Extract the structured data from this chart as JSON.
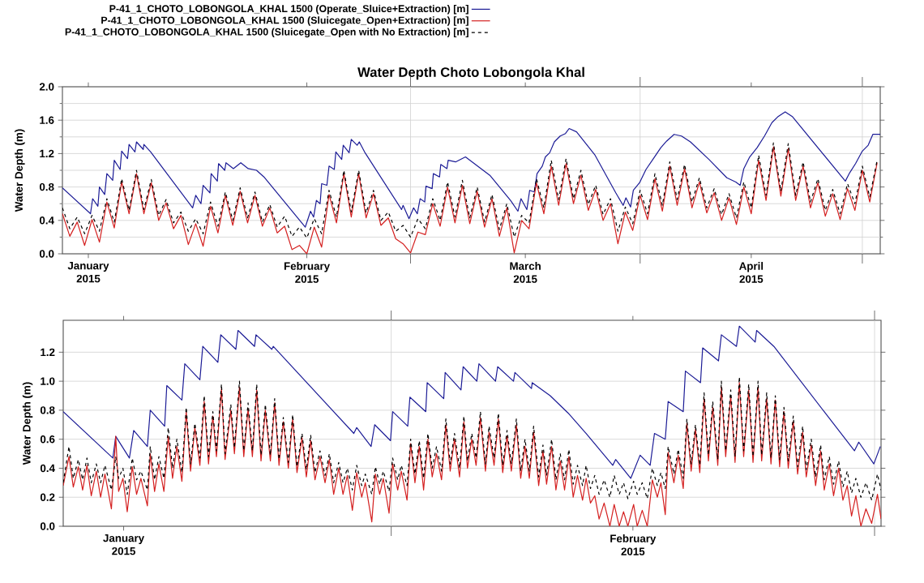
{
  "chart_data": [
    {
      "type": "line",
      "title": "Water Depth Choto Lobongola Khal",
      "ylabel": "Water Depth (m)",
      "legend": "top left",
      "grid": true,
      "xlim": [
        "2015-01-13",
        "2015-05-03T10:00"
      ],
      "ylim": [
        0,
        2
      ],
      "xticks": [
        {
          "value": "2015-01-16T12:00",
          "label": "January 2015"
        },
        {
          "value": "2015-02-15",
          "label": "February 2015"
        },
        {
          "value": "2015-03-01",
          "label": null
        },
        {
          "value": "2015-03-16T12:00",
          "label": "March 2015"
        },
        {
          "value": "2015-04-01",
          "label": null
        },
        {
          "value": "2015-04-16",
          "label": "April 2015"
        },
        {
          "value": "2015-05-01",
          "label": null
        }
      ],
      "yticks": [
        {
          "value": 0,
          "label": "0.0"
        },
        {
          "value": 0.2,
          "label": null
        },
        {
          "value": 0.4,
          "label": "0.4"
        },
        {
          "value": 0.6,
          "label": null
        },
        {
          "value": 0.8,
          "label": "0.8"
        },
        {
          "value": 1.0,
          "label": null
        },
        {
          "value": 1.2,
          "label": "1.2"
        },
        {
          "value": 1.4,
          "label": null
        },
        {
          "value": 1.6,
          "label": "1.6"
        },
        {
          "value": 1.8,
          "label": null
        },
        {
          "value": 2.0,
          "label": "2.0"
        }
      ],
      "x": [
        "2015-01-13",
        "2015-01-14",
        "2015-01-15",
        "2015-01-16",
        "2015-01-17",
        "2015-01-18",
        "2015-01-19",
        "2015-01-20",
        "2015-01-21",
        "2015-01-22",
        "2015-01-23",
        "2015-01-24",
        "2015-01-25",
        "2015-01-26",
        "2015-01-27",
        "2015-01-28",
        "2015-01-29",
        "2015-01-30",
        "2015-01-31",
        "2015-02-01",
        "2015-02-02",
        "2015-02-03",
        "2015-02-04",
        "2015-02-05",
        "2015-02-06",
        "2015-02-07",
        "2015-02-08",
        "2015-02-09",
        "2015-02-10",
        "2015-02-11",
        "2015-02-12",
        "2015-02-13",
        "2015-02-14",
        "2015-02-15",
        "2015-02-16",
        "2015-02-17",
        "2015-02-18",
        "2015-02-19",
        "2015-02-20",
        "2015-02-21",
        "2015-02-22",
        "2015-02-23",
        "2015-02-24",
        "2015-02-25",
        "2015-02-26",
        "2015-02-27",
        "2015-02-28",
        "2015-03-01",
        "2015-03-02",
        "2015-03-03",
        "2015-03-04",
        "2015-03-05",
        "2015-03-06",
        "2015-03-07",
        "2015-03-08",
        "2015-03-09",
        "2015-03-10",
        "2015-03-11",
        "2015-03-12",
        "2015-03-13",
        "2015-03-14",
        "2015-03-15",
        "2015-03-16",
        "2015-03-17",
        "2015-03-18",
        "2015-03-19",
        "2015-03-20",
        "2015-03-21",
        "2015-03-22",
        "2015-03-23",
        "2015-03-24",
        "2015-03-25",
        "2015-03-26",
        "2015-03-27",
        "2015-03-28",
        "2015-03-29",
        "2015-03-30",
        "2015-03-31",
        "2015-04-01",
        "2015-04-02",
        "2015-04-03",
        "2015-04-04",
        "2015-04-05",
        "2015-04-06",
        "2015-04-07",
        "2015-04-08",
        "2015-04-09",
        "2015-04-10",
        "2015-04-11",
        "2015-04-12",
        "2015-04-13",
        "2015-04-14",
        "2015-04-15",
        "2015-04-16",
        "2015-04-17",
        "2015-04-18",
        "2015-04-19",
        "2015-04-20",
        "2015-04-21",
        "2015-04-22",
        "2015-04-23",
        "2015-04-24",
        "2015-04-25",
        "2015-04-26",
        "2015-04-27",
        "2015-04-28",
        "2015-04-29",
        "2015-04-30",
        "2015-05-01",
        "2015-05-02",
        "2015-05-03"
      ],
      "series": [
        {
          "name": "P-41_1_CHOTO_LOBONGOLA_KHAL 1500 (Operate_Sluice+Extraction) [m]",
          "color": "#1c1c96",
          "x": [
            "2015-01-13T00:00",
            "2015-01-16T19:00",
            "2015-01-17T02:00",
            "2015-01-17T19:00",
            "2015-01-18T00:00",
            "2015-01-18T17:00",
            "2015-01-19T00:00",
            "2015-01-19T19:00",
            "2015-01-20T00:00",
            "2015-01-20T19:00",
            "2015-01-21T00:00",
            "2015-01-21T19:00",
            "2015-01-22T00:00",
            "2015-01-22T19:00",
            "2015-01-23T00:00",
            "2015-01-23T22:00",
            "2015-01-24T00:00",
            "2015-01-24T22:00",
            "2015-01-30T14:00",
            "2015-01-31T00:00",
            "2015-01-31T17:00",
            "2015-02-01T00:00",
            "2015-02-01T22:00",
            "2015-02-02T02:00",
            "2015-02-02T22:00",
            "2015-02-03T02:00",
            "2015-02-03T22:00",
            "2015-02-04T02:00",
            "2015-02-05T02:00",
            "2015-02-06T02:00",
            "2015-02-07T02:00",
            "2015-02-08T05:00",
            "2015-02-09T05:00",
            "2015-02-14T19:00",
            "2015-02-15T12:00",
            "2015-02-15T22:00",
            "2015-02-16T07:00",
            "2015-02-16T19:00",
            "2015-02-17T00:00",
            "2015-02-17T17:00",
            "2015-02-18T00:00",
            "2015-02-18T17:00",
            "2015-02-18T22:00",
            "2015-02-19T17:00",
            "2015-02-19T22:00",
            "2015-02-20T17:00",
            "2015-02-21T00:00",
            "2015-02-21T19:00",
            "2015-02-22T02:00",
            "2015-02-22T19:00",
            "2015-02-27T19:00",
            "2015-02-28T00:00",
            "2015-02-28T19:00",
            "2015-03-01T10:00",
            "2015-03-01T22:00",
            "2015-03-02T07:00",
            "2015-03-02T22:00",
            "2015-03-03T02:00",
            "2015-03-03T22:00",
            "2015-03-04T02:00",
            "2015-03-04T22:00",
            "2015-03-05T02:00",
            "2015-03-05T22:00",
            "2015-03-06T02:00",
            "2015-03-07T02:00",
            "2015-03-08T10:00",
            "2015-03-11T17:00",
            "2015-03-14T12:00",
            "2015-03-15T12:00",
            "2015-03-15T22:00",
            "2015-03-16T17:00",
            "2015-03-17T02:00",
            "2015-03-17T17:00",
            "2015-03-18T02:00",
            "2015-03-18T19:00",
            "2015-03-19T05:00",
            "2015-03-19T19:00",
            "2015-03-20T10:00",
            "2015-03-21T05:00",
            "2015-03-21T22:00",
            "2015-03-22T10:00",
            "2015-03-23T10:00",
            "2015-03-25T22:00",
            "2015-03-28T17:00",
            "2015-03-29T17:00",
            "2015-03-30T02:00",
            "2015-03-30T17:00",
            "2015-03-31T02:00",
            "2015-03-31T22:00",
            "2015-04-01T19:00",
            "2015-04-02T19:00",
            "2015-04-03T19:00",
            "2015-04-04T14:00",
            "2015-04-05T14:00",
            "2015-04-06T14:00",
            "2015-04-07T19:00",
            "2015-04-10T07:00",
            "2015-04-12T17:00",
            "2015-04-13T22:00",
            "2015-04-14T12:00",
            "2015-04-15T00:00",
            "2015-04-15T19:00",
            "2015-04-16T19:00",
            "2015-04-17T19:00",
            "2015-04-18T19:00",
            "2015-04-19T14:00",
            "2015-04-20T14:00",
            "2015-04-21T14:00",
            "2015-04-28T17:00",
            "2015-04-29T07:00",
            "2015-04-30T02:00",
            "2015-05-01T00:00",
            "2015-05-01T19:00",
            "2015-05-02T10:00",
            "2015-05-03T10:00"
          ],
          "values": [
            0.79,
            0.48,
            0.66,
            0.57,
            0.8,
            0.71,
            0.96,
            0.88,
            1.12,
            1.01,
            1.23,
            1.14,
            1.31,
            1.22,
            1.34,
            1.25,
            1.31,
            1.22,
            0.55,
            0.7,
            0.6,
            0.82,
            0.73,
            0.96,
            0.87,
            1.08,
            1.0,
            1.09,
            1.02,
            1.09,
            1.02,
            1.0,
            0.92,
            0.32,
            0.51,
            0.44,
            0.64,
            0.6,
            0.84,
            0.82,
            1.05,
            1.01,
            1.22,
            1.13,
            1.3,
            1.21,
            1.37,
            1.3,
            1.34,
            1.22,
            0.53,
            0.58,
            0.42,
            0.55,
            0.48,
            0.66,
            0.62,
            0.81,
            0.78,
            0.96,
            0.92,
            1.07,
            1.02,
            1.12,
            1.1,
            1.16,
            0.94,
            0.64,
            0.51,
            0.66,
            0.53,
            0.76,
            0.74,
            0.96,
            1.05,
            1.16,
            1.21,
            1.34,
            1.41,
            1.44,
            1.5,
            1.46,
            1.18,
            0.73,
            0.58,
            0.67,
            0.56,
            0.76,
            0.85,
            1.01,
            1.14,
            1.27,
            1.35,
            1.43,
            1.41,
            1.34,
            1.13,
            0.91,
            0.86,
            0.82,
            1.02,
            1.16,
            1.27,
            1.41,
            1.57,
            1.64,
            1.7,
            1.64,
            0.87,
            0.97,
            1.08,
            1.23,
            1.3,
            1.43,
            1.43
          ]
        },
        {
          "name": "P-41_1_CHOTO_LOBONGOLA_KHAL 1500 (Sluicegate_Open+Extraction) [m]",
          "color": "#d42020",
          "values": [
            0.48,
            0.21,
            0.38,
            0.1,
            0.41,
            0.14,
            0.62,
            0.31,
            0.86,
            0.48,
            0.96,
            0.48,
            0.85,
            0.4,
            0.61,
            0.3,
            0.46,
            0.11,
            0.36,
            0.09,
            0.57,
            0.25,
            0.7,
            0.34,
            0.75,
            0.37,
            0.7,
            0.33,
            0.55,
            0.25,
            0.33,
            0.05,
            0.1,
            0.0,
            0.32,
            0.08,
            0.71,
            0.37,
            0.96,
            0.44,
            0.96,
            0.43,
            0.72,
            0.34,
            0.43,
            0.18,
            0.12,
            0.01,
            0.26,
            0.23,
            0.6,
            0.33,
            0.8,
            0.37,
            0.82,
            0.36,
            0.75,
            0.32,
            0.66,
            0.21,
            0.55,
            0.01,
            0.4,
            0.3,
            0.85,
            0.48,
            1.05,
            0.58,
            1.08,
            0.6,
            0.94,
            0.52,
            0.77,
            0.4,
            0.6,
            0.12,
            0.5,
            0.28,
            0.7,
            0.41,
            0.9,
            0.51,
            1.05,
            0.58,
            1.02,
            0.55,
            0.86,
            0.49,
            0.73,
            0.4,
            0.67,
            0.35,
            0.8,
            0.48,
            1.12,
            0.64,
            1.28,
            0.69,
            1.26,
            0.64,
            1.05,
            0.55,
            0.85,
            0.45,
            0.72,
            0.41,
            0.78,
            0.52,
            1.0,
            0.62,
            1.09
          ]
        },
        {
          "name": "P-41_1_CHOTO_LOBONGOLA_KHAL 1500 (Sluicegate_Open with No Extraction) [m]",
          "color": "#000000",
          "line_style": "dashed",
          "values": [
            0.55,
            0.3,
            0.44,
            0.24,
            0.46,
            0.27,
            0.66,
            0.38,
            0.9,
            0.52,
            1.0,
            0.53,
            0.89,
            0.46,
            0.65,
            0.37,
            0.5,
            0.27,
            0.42,
            0.24,
            0.62,
            0.33,
            0.74,
            0.4,
            0.79,
            0.43,
            0.74,
            0.38,
            0.59,
            0.32,
            0.45,
            0.21,
            0.32,
            0.19,
            0.42,
            0.24,
            0.76,
            0.44,
            1.0,
            0.5,
            1.0,
            0.49,
            0.76,
            0.4,
            0.5,
            0.27,
            0.34,
            0.2,
            0.42,
            0.3,
            0.66,
            0.4,
            0.86,
            0.44,
            0.88,
            0.43,
            0.8,
            0.38,
            0.71,
            0.29,
            0.6,
            0.2,
            0.46,
            0.37,
            0.9,
            0.55,
            1.12,
            0.65,
            1.14,
            0.66,
            1.0,
            0.59,
            0.82,
            0.47,
            0.66,
            0.27,
            0.56,
            0.36,
            0.76,
            0.48,
            0.96,
            0.58,
            1.1,
            0.65,
            1.07,
            0.62,
            0.91,
            0.55,
            0.78,
            0.47,
            0.72,
            0.43,
            0.86,
            0.55,
            1.18,
            0.7,
            1.33,
            0.75,
            1.32,
            0.7,
            1.1,
            0.62,
            0.9,
            0.52,
            0.77,
            0.48,
            0.84,
            0.6,
            1.05,
            0.68,
            1.12
          ]
        }
      ]
    },
    {
      "type": "line",
      "ylabel": "Water Depth (m)",
      "grid": true,
      "xlim": [
        "2015-01-13",
        "2015-03-01T09:00"
      ],
      "ylim": [
        0,
        1.42
      ],
      "xticks": [
        {
          "value": "2015-01-16T12:00",
          "label": "January 2015"
        },
        {
          "value": "2015-02-01",
          "label": null
        },
        {
          "value": "2015-02-15",
          "label": "February 2015"
        },
        {
          "value": "2015-03-01",
          "label": null
        }
      ],
      "yticks": [
        {
          "value": 0,
          "label": "0.0"
        },
        {
          "value": 0.2,
          "label": "0.2"
        },
        {
          "value": 0.4,
          "label": "0.4"
        },
        {
          "value": 0.6,
          "label": "0.6"
        },
        {
          "value": 0.8,
          "label": "0.8"
        },
        {
          "value": 1.0,
          "label": "1.0"
        },
        {
          "value": 1.2,
          "label": "1.2"
        }
      ],
      "x": [
        "2015-01-13T00:00",
        "2015-01-13T08:00",
        "2015-01-13T14:00",
        "2015-01-13T21:00",
        "2015-01-14T03:00",
        "2015-01-14T09:00",
        "2015-01-14T15:00",
        "2015-01-14T22:00",
        "2015-01-15T04:00",
        "2015-01-15T10:00",
        "2015-01-15T19:00",
        "2015-01-16T01:00",
        "2015-01-16T05:00",
        "2015-01-16T11:00",
        "2015-01-16T17:00",
        "2015-01-17T00:00",
        "2015-01-17T06:00",
        "2015-01-17T12:00",
        "2015-01-17T21:00",
        "2015-01-18T01:00",
        "2015-01-18T07:00",
        "2015-01-18T13:00",
        "2015-01-18T20:00",
        "2015-01-19T02:00",
        "2015-01-19T08:00",
        "2015-01-19T14:00",
        "2015-01-19T21:00",
        "2015-01-20T03:00",
        "2015-01-20T09:00",
        "2015-01-20T15:00",
        "2015-01-20T22:00",
        "2015-01-21T04:00",
        "2015-01-21T10:00",
        "2015-01-21T16:00",
        "2015-01-21T21:00",
        "2015-01-22T04:00",
        "2015-01-22T09:00",
        "2015-01-22T17:00",
        "2015-01-22T22:00",
        "2015-01-23T05:00",
        "2015-01-23T11:00",
        "2015-01-23T17:00",
        "2015-01-23T23:00",
        "2015-01-24T05:00",
        "2015-01-24T11:00",
        "2015-01-24T17:00",
        "2015-01-25T00:00",
        "2015-01-25T06:00",
        "2015-01-25T12:00",
        "2015-01-25T18:00",
        "2015-01-26T01:00",
        "2015-01-26T07:00",
        "2015-01-26T13:00",
        "2015-01-26T20:00",
        "2015-01-27T02:00",
        "2015-01-27T08:00",
        "2015-01-27T14:00",
        "2015-01-27T21:00",
        "2015-01-28T04:00",
        "2015-01-28T10:00",
        "2015-01-28T16:00",
        "2015-01-28T23:00",
        "2015-01-29T05:00",
        "2015-01-29T11:00",
        "2015-01-29T18:00",
        "2015-01-30T00:00",
        "2015-01-30T07:00",
        "2015-01-30T12:00",
        "2015-01-30T21:00",
        "2015-01-31T02:00",
        "2015-01-31T08:00",
        "2015-01-31T13:00",
        "2015-01-31T21:00",
        "2015-02-01T02:00",
        "2015-02-01T09:00",
        "2015-02-01T14:00",
        "2015-02-01T22:00",
        "2015-02-02T03:00",
        "2015-02-02T09:00",
        "2015-02-02T15:00",
        "2015-02-02T21:00",
        "2015-02-03T03:00",
        "2015-02-03T09:00",
        "2015-02-03T15:00",
        "2015-02-03T22:00",
        "2015-02-04T04:00",
        "2015-02-04T10:00",
        "2015-02-04T16:00",
        "2015-02-04T23:00",
        "2015-02-05T05:00",
        "2015-02-05T10:00",
        "2015-02-05T16:00",
        "2015-02-05T22:00",
        "2015-02-06T04:00",
        "2015-02-06T11:00",
        "2015-02-06T16:00",
        "2015-02-06T23:00",
        "2015-02-07T05:00",
        "2015-02-07T11:00",
        "2015-02-07T17:00",
        "2015-02-07T23:00",
        "2015-02-08T06:00",
        "2015-02-08T12:00",
        "2015-02-08T18:00",
        "2015-02-09T00:00",
        "2015-02-09T06:00",
        "2015-02-09T13:00",
        "2015-02-09T19:00",
        "2015-02-10T00:00",
        "2015-02-10T07:00",
        "2015-02-10T13:00",
        "2015-02-10T19:00",
        "2015-02-11T01:00",
        "2015-02-11T07:00",
        "2015-02-11T13:00",
        "2015-02-11T19:00",
        "2015-02-12T02:00",
        "2015-02-12T07:00",
        "2015-02-12T13:00",
        "2015-02-12T19:00",
        "2015-02-13T01:00",
        "2015-02-13T08:00",
        "2015-02-13T16:00",
        "2015-02-13T22:00",
        "2015-02-14T05:00",
        "2015-02-14T11:00",
        "2015-02-14T17:00",
        "2015-02-15T01:00",
        "2015-02-15T06:00",
        "2015-02-15T13:00",
        "2015-02-15T20:00",
        "2015-02-16T03:00",
        "2015-02-16T10:00",
        "2015-02-16T15:00",
        "2015-02-16T21:00",
        "2015-02-17T01:00",
        "2015-02-17T09:00",
        "2015-02-17T15:00",
        "2015-02-17T22:00",
        "2015-02-18T03:00",
        "2015-02-18T09:00",
        "2015-02-18T15:00",
        "2015-02-18T21:00",
        "2015-02-19T03:00",
        "2015-02-19T09:00",
        "2015-02-19T15:00",
        "2015-02-19T22:00",
        "2015-02-20T03:00",
        "2015-02-20T09:00",
        "2015-02-20T16:00",
        "2015-02-20T22:00",
        "2015-02-21T04:00",
        "2015-02-21T10:00",
        "2015-02-21T17:00",
        "2015-02-21T23:00",
        "2015-02-22T06:00",
        "2015-02-22T11:00",
        "2015-02-22T18:00",
        "2015-02-23T00:00",
        "2015-02-23T06:00",
        "2015-02-23T12:00",
        "2015-02-23T18:00",
        "2015-02-24T00:00",
        "2015-02-24T07:00",
        "2015-02-24T13:00",
        "2015-02-24T20:00",
        "2015-02-25T01:00",
        "2015-02-25T08:00",
        "2015-02-25T14:00",
        "2015-02-25T21:00",
        "2015-02-26T02:00",
        "2015-02-26T09:00",
        "2015-02-26T15:00",
        "2015-02-26T22:00",
        "2015-02-27T04:00",
        "2015-02-27T10:00",
        "2015-02-27T16:00",
        "2015-02-27T22:00",
        "2015-02-28T05:00",
        "2015-02-28T12:00",
        "2015-02-28T20:00",
        "2015-03-01T04:00",
        "2015-03-01T09:00"
      ],
      "series": [
        {
          "color": "#1c1c96",
          "x": [
            "2015-01-13T00:00",
            "2015-01-15T21:00",
            "2015-01-16T01:00",
            "2015-01-16T20:00",
            "2015-01-17T02:00",
            "2015-01-17T21:00",
            "2015-01-18T01:00",
            "2015-01-18T21:00",
            "2015-01-19T00:00",
            "2015-01-19T21:00",
            "2015-01-20T01:00",
            "2015-01-20T22:00",
            "2015-01-21T02:00",
            "2015-01-21T23:00",
            "2015-01-22T03:00",
            "2015-01-23T00:00",
            "2015-01-23T03:00",
            "2015-01-24T02:00",
            "2015-01-24T04:00",
            "2015-01-25T02:00",
            "2015-01-25T04:00",
            "2015-01-29T20:00",
            "2015-01-30T00:00",
            "2015-01-30T20:00",
            "2015-01-31T01:00",
            "2015-01-31T23:00",
            "2015-02-01T02:00",
            "2015-02-01T23:00",
            "2015-02-02T02:00",
            "2015-02-03T00:00",
            "2015-02-03T02:00",
            "2015-02-04T01:00",
            "2015-02-04T03:00",
            "2015-02-05T01:00",
            "2015-02-05T04:00",
            "2015-02-05T23:00",
            "2015-02-06T02:00",
            "2015-02-07T01:00",
            "2015-02-07T04:00",
            "2015-02-08T02:00",
            "2015-02-08T04:00",
            "2015-02-09T03:00",
            "2015-02-09T04:00",
            "2015-02-10T05:00",
            "2015-02-11T06:00",
            "2015-02-12T07:00",
            "2015-02-13T20:00",
            "2015-02-14T00:00",
            "2015-02-14T21:00",
            "2015-02-15T10:00",
            "2015-02-16T00:00",
            "2015-02-16T06:00",
            "2015-02-16T21:00",
            "2015-02-17T01:00",
            "2015-02-17T22:00",
            "2015-02-18T01:00",
            "2015-02-18T22:00",
            "2015-02-19T01:00",
            "2015-02-19T23:00",
            "2015-02-20T03:00",
            "2015-02-21T00:00",
            "2015-02-21T04:00",
            "2015-02-22T02:00",
            "2015-02-22T04:00",
            "2015-02-23T04:00",
            "2015-02-27T20:00",
            "2015-02-28T02:00",
            "2015-02-28T23:00",
            "2015-03-01T08:00"
          ],
          "values": [
            0.79,
            0.47,
            0.62,
            0.47,
            0.66,
            0.55,
            0.8,
            0.69,
            0.97,
            0.87,
            1.12,
            1.01,
            1.24,
            1.13,
            1.32,
            1.22,
            1.35,
            1.24,
            1.32,
            1.22,
            1.24,
            0.64,
            0.68,
            0.55,
            0.7,
            0.59,
            0.79,
            0.69,
            0.89,
            0.79,
            0.99,
            0.88,
            1.06,
            0.94,
            1.1,
            1.0,
            1.12,
            1.0,
            1.1,
            1.0,
            1.06,
            0.95,
            0.99,
            0.9,
            0.78,
            0.64,
            0.42,
            0.46,
            0.33,
            0.49,
            0.42,
            0.64,
            0.6,
            0.86,
            0.79,
            1.07,
            0.99,
            1.23,
            1.14,
            1.32,
            1.24,
            1.38,
            1.27,
            1.35,
            1.24,
            0.52,
            0.58,
            0.43,
            0.55
          ]
        },
        {
          "color": "#d42020",
          "values": [
            0.28,
            0.48,
            0.27,
            0.41,
            0.25,
            0.42,
            0.21,
            0.38,
            0.2,
            0.36,
            0.12,
            0.62,
            0.24,
            0.33,
            0.1,
            0.41,
            0.22,
            0.33,
            0.14,
            0.5,
            0.24,
            0.43,
            0.24,
            0.62,
            0.33,
            0.55,
            0.31,
            0.79,
            0.38,
            0.68,
            0.42,
            0.86,
            0.43,
            0.76,
            0.48,
            0.95,
            0.46,
            0.8,
            0.5,
            0.96,
            0.48,
            0.81,
            0.48,
            0.94,
            0.45,
            0.8,
            0.45,
            0.85,
            0.42,
            0.72,
            0.4,
            0.74,
            0.37,
            0.61,
            0.34,
            0.59,
            0.32,
            0.48,
            0.3,
            0.46,
            0.22,
            0.4,
            0.22,
            0.35,
            0.11,
            0.37,
            0.2,
            0.3,
            0.03,
            0.36,
            0.22,
            0.33,
            0.09,
            0.43,
            0.25,
            0.38,
            0.18,
            0.57,
            0.3,
            0.55,
            0.25,
            0.6,
            0.34,
            0.5,
            0.32,
            0.7,
            0.38,
            0.6,
            0.34,
            0.72,
            0.4,
            0.6,
            0.42,
            0.75,
            0.38,
            0.65,
            0.42,
            0.74,
            0.37,
            0.62,
            0.38,
            0.7,
            0.33,
            0.55,
            0.33,
            0.65,
            0.28,
            0.52,
            0.29,
            0.55,
            0.25,
            0.45,
            0.25,
            0.48,
            0.2,
            0.35,
            0.18,
            0.33,
            0.16,
            0.21,
            0.05,
            0.16,
            0.0,
            0.15,
            0.0,
            0.1,
            0.0,
            0.15,
            0.0,
            0.11,
            0.0,
            0.32,
            0.2,
            0.3,
            0.08,
            0.51,
            0.3,
            0.49,
            0.26,
            0.71,
            0.38,
            0.67,
            0.37,
            0.88,
            0.45,
            0.82,
            0.42,
            0.96,
            0.48,
            0.9,
            0.44,
            0.99,
            0.48,
            0.94,
            0.44,
            0.96,
            0.45,
            0.88,
            0.43,
            0.87,
            0.41,
            0.79,
            0.4,
            0.72,
            0.36,
            0.65,
            0.34,
            0.56,
            0.28,
            0.52,
            0.25,
            0.43,
            0.21,
            0.4,
            0.18,
            0.28,
            0.07,
            0.21,
            0.0,
            0.12,
            0.02,
            0.22,
            0.05
          ]
        },
        {
          "color": "#000000",
          "line_style": "dashed",
          "values": [
            0.3,
            0.55,
            0.33,
            0.46,
            0.32,
            0.47,
            0.3,
            0.43,
            0.3,
            0.42,
            0.25,
            0.48,
            0.33,
            0.4,
            0.22,
            0.47,
            0.32,
            0.38,
            0.25,
            0.55,
            0.32,
            0.48,
            0.33,
            0.68,
            0.4,
            0.6,
            0.37,
            0.82,
            0.43,
            0.71,
            0.47,
            0.9,
            0.48,
            0.79,
            0.52,
            0.98,
            0.5,
            0.84,
            0.54,
            1.0,
            0.52,
            0.85,
            0.52,
            0.98,
            0.49,
            0.84,
            0.49,
            0.88,
            0.46,
            0.75,
            0.44,
            0.77,
            0.41,
            0.64,
            0.39,
            0.63,
            0.37,
            0.52,
            0.35,
            0.5,
            0.3,
            0.44,
            0.3,
            0.4,
            0.25,
            0.42,
            0.28,
            0.36,
            0.22,
            0.41,
            0.29,
            0.38,
            0.24,
            0.47,
            0.32,
            0.42,
            0.28,
            0.6,
            0.36,
            0.59,
            0.33,
            0.64,
            0.4,
            0.55,
            0.38,
            0.74,
            0.43,
            0.64,
            0.4,
            0.76,
            0.45,
            0.64,
            0.47,
            0.79,
            0.43,
            0.69,
            0.47,
            0.78,
            0.42,
            0.66,
            0.43,
            0.74,
            0.38,
            0.6,
            0.38,
            0.69,
            0.34,
            0.56,
            0.35,
            0.6,
            0.32,
            0.5,
            0.32,
            0.53,
            0.29,
            0.42,
            0.28,
            0.42,
            0.26,
            0.35,
            0.22,
            0.32,
            0.2,
            0.35,
            0.22,
            0.3,
            0.19,
            0.31,
            0.22,
            0.3,
            0.19,
            0.4,
            0.28,
            0.37,
            0.26,
            0.55,
            0.36,
            0.53,
            0.33,
            0.74,
            0.43,
            0.7,
            0.42,
            0.92,
            0.49,
            0.86,
            0.46,
            1.0,
            0.52,
            0.94,
            0.48,
            1.03,
            0.52,
            0.98,
            0.48,
            1.0,
            0.49,
            0.92,
            0.47,
            0.9,
            0.46,
            0.82,
            0.45,
            0.76,
            0.41,
            0.69,
            0.39,
            0.6,
            0.34,
            0.56,
            0.32,
            0.48,
            0.29,
            0.45,
            0.27,
            0.38,
            0.23,
            0.33,
            0.2,
            0.3,
            0.18,
            0.36,
            0.25
          ]
        }
      ]
    }
  ]
}
